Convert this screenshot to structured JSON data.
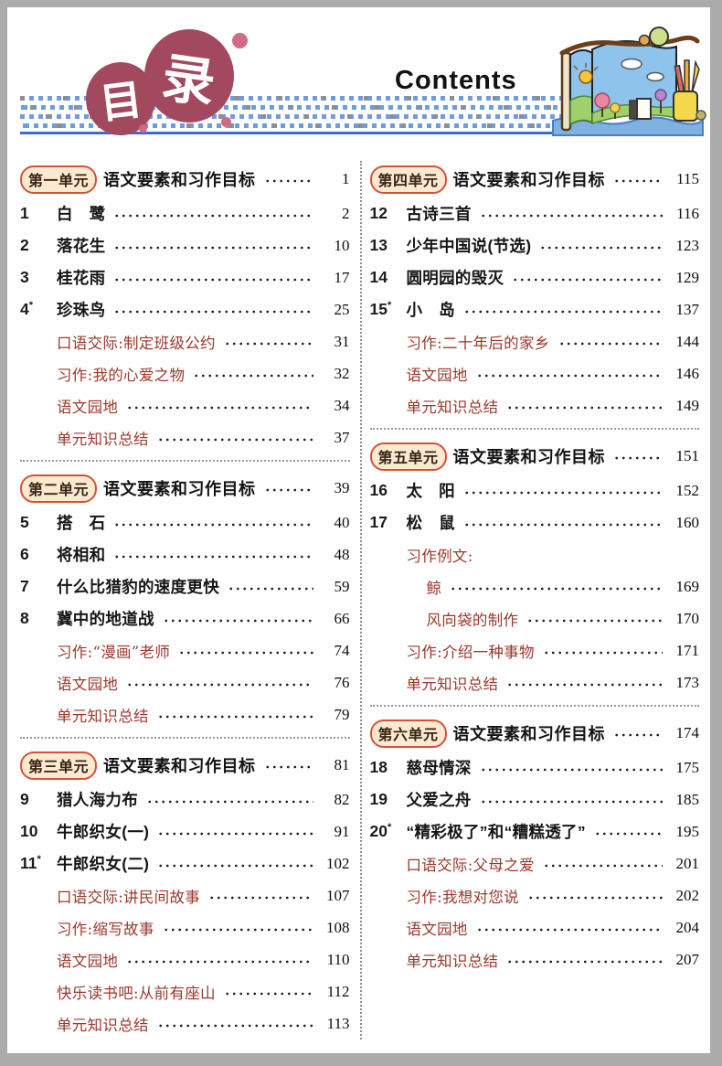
{
  "header": {
    "logo_chars": [
      "目",
      "录"
    ],
    "contents_label": "Contents",
    "illustration": "picture-book-with-pencil-cup"
  },
  "colors": {
    "logo_circle": "#a2495f",
    "logo_dot": "#d06a85",
    "badge_border": "#d4523b",
    "badge_bg": "#fbead0",
    "sub_item_text": "#99392c",
    "band_blue": "#6d9ce0",
    "rule_blue": "#3f6cc7"
  },
  "columns": [
    {
      "sections": [
        {
          "unit": {
            "badge": "第一单元",
            "title": "语文要素和习作目标",
            "page": "1"
          },
          "items": [
            {
              "kind": "lesson",
              "num": "1",
              "star": false,
              "title": "白　鹭",
              "page": "2"
            },
            {
              "kind": "lesson",
              "num": "2",
              "star": false,
              "title": "落花生",
              "page": "10"
            },
            {
              "kind": "lesson",
              "num": "3",
              "star": false,
              "title": "桂花雨",
              "page": "17"
            },
            {
              "kind": "lesson",
              "num": "4",
              "star": true,
              "title": "珍珠鸟",
              "page": "25"
            },
            {
              "kind": "sub",
              "title": "口语交际:制定班级公约",
              "page": "31"
            },
            {
              "kind": "sub",
              "title": "习作:我的心爱之物",
              "page": "32"
            },
            {
              "kind": "sub",
              "title": "语文园地",
              "page": "34"
            },
            {
              "kind": "sub",
              "title": "单元知识总结",
              "page": "37"
            }
          ]
        },
        {
          "unit": {
            "badge": "第二单元",
            "title": "语文要素和习作目标",
            "page": "39"
          },
          "items": [
            {
              "kind": "lesson",
              "num": "5",
              "star": false,
              "title": "搭　石",
              "page": "40"
            },
            {
              "kind": "lesson",
              "num": "6",
              "star": false,
              "title": "将相和",
              "page": "48"
            },
            {
              "kind": "lesson",
              "num": "7",
              "star": false,
              "title": "什么比猎豹的速度更快",
              "page": "59"
            },
            {
              "kind": "lesson",
              "num": "8",
              "star": false,
              "title": "冀中的地道战",
              "page": "66"
            },
            {
              "kind": "sub",
              "title": "习作:“漫画”老师",
              "page": "74"
            },
            {
              "kind": "sub",
              "title": "语文园地",
              "page": "76"
            },
            {
              "kind": "sub",
              "title": "单元知识总结",
              "page": "79"
            }
          ]
        },
        {
          "unit": {
            "badge": "第三单元",
            "title": "语文要素和习作目标",
            "page": "81"
          },
          "items": [
            {
              "kind": "lesson",
              "num": "9",
              "star": false,
              "title": "猎人海力布",
              "page": "82"
            },
            {
              "kind": "lesson",
              "num": "10",
              "star": false,
              "title": "牛郎织女(一)",
              "page": "91"
            },
            {
              "kind": "lesson",
              "num": "11",
              "star": true,
              "title": "牛郎织女(二)",
              "page": "102"
            },
            {
              "kind": "sub",
              "title": "口语交际:讲民间故事",
              "page": "107"
            },
            {
              "kind": "sub",
              "title": "习作:缩写故事",
              "page": "108"
            },
            {
              "kind": "sub",
              "title": "语文园地",
              "page": "110"
            },
            {
              "kind": "sub",
              "title": "快乐读书吧:从前有座山",
              "page": "112"
            },
            {
              "kind": "sub",
              "title": "单元知识总结",
              "page": "113"
            }
          ]
        }
      ]
    },
    {
      "sections": [
        {
          "unit": {
            "badge": "第四单元",
            "title": "语文要素和习作目标",
            "page": "115"
          },
          "items": [
            {
              "kind": "lesson",
              "num": "12",
              "star": false,
              "title": "古诗三首",
              "page": "116"
            },
            {
              "kind": "lesson",
              "num": "13",
              "star": false,
              "title": "少年中国说(节选)",
              "page": "123"
            },
            {
              "kind": "lesson",
              "num": "14",
              "star": false,
              "title": "圆明园的毁灭",
              "page": "129"
            },
            {
              "kind": "lesson",
              "num": "15",
              "star": true,
              "title": "小　岛",
              "page": "137"
            },
            {
              "kind": "sub",
              "title": "习作:二十年后的家乡",
              "page": "144"
            },
            {
              "kind": "sub",
              "title": "语文园地",
              "page": "146"
            },
            {
              "kind": "sub",
              "title": "单元知识总结",
              "page": "149"
            }
          ]
        },
        {
          "unit": {
            "badge": "第五单元",
            "title": "语文要素和习作目标",
            "page": "151"
          },
          "items": [
            {
              "kind": "lesson",
              "num": "16",
              "star": false,
              "title": "太　阳",
              "page": "152"
            },
            {
              "kind": "lesson",
              "num": "17",
              "star": false,
              "title": "松　鼠",
              "page": "160"
            },
            {
              "kind": "subnl",
              "title": "习作例文:",
              "page": ""
            },
            {
              "kind": "sub2",
              "title": "鲸",
              "page": "169"
            },
            {
              "kind": "sub2",
              "title": "风向袋的制作",
              "page": "170"
            },
            {
              "kind": "sub",
              "title": "习作:介绍一种事物",
              "page": "171"
            },
            {
              "kind": "sub",
              "title": "单元知识总结",
              "page": "173"
            }
          ]
        },
        {
          "unit": {
            "badge": "第六单元",
            "title": "语文要素和习作目标",
            "page": "174"
          },
          "items": [
            {
              "kind": "lesson",
              "num": "18",
              "star": false,
              "title": "慈母情深",
              "page": "175"
            },
            {
              "kind": "lesson",
              "num": "19",
              "star": false,
              "title": "父爱之舟",
              "page": "185"
            },
            {
              "kind": "lesson",
              "num": "20",
              "star": true,
              "title": "“精彩极了”和“糟糕透了”",
              "page": "195"
            },
            {
              "kind": "sub",
              "title": "口语交际:父母之爱",
              "page": "201"
            },
            {
              "kind": "sub",
              "title": "习作:我想对您说",
              "page": "202"
            },
            {
              "kind": "sub",
              "title": "语文园地",
              "page": "204"
            },
            {
              "kind": "sub",
              "title": "单元知识总结",
              "page": "207"
            }
          ]
        }
      ]
    }
  ]
}
